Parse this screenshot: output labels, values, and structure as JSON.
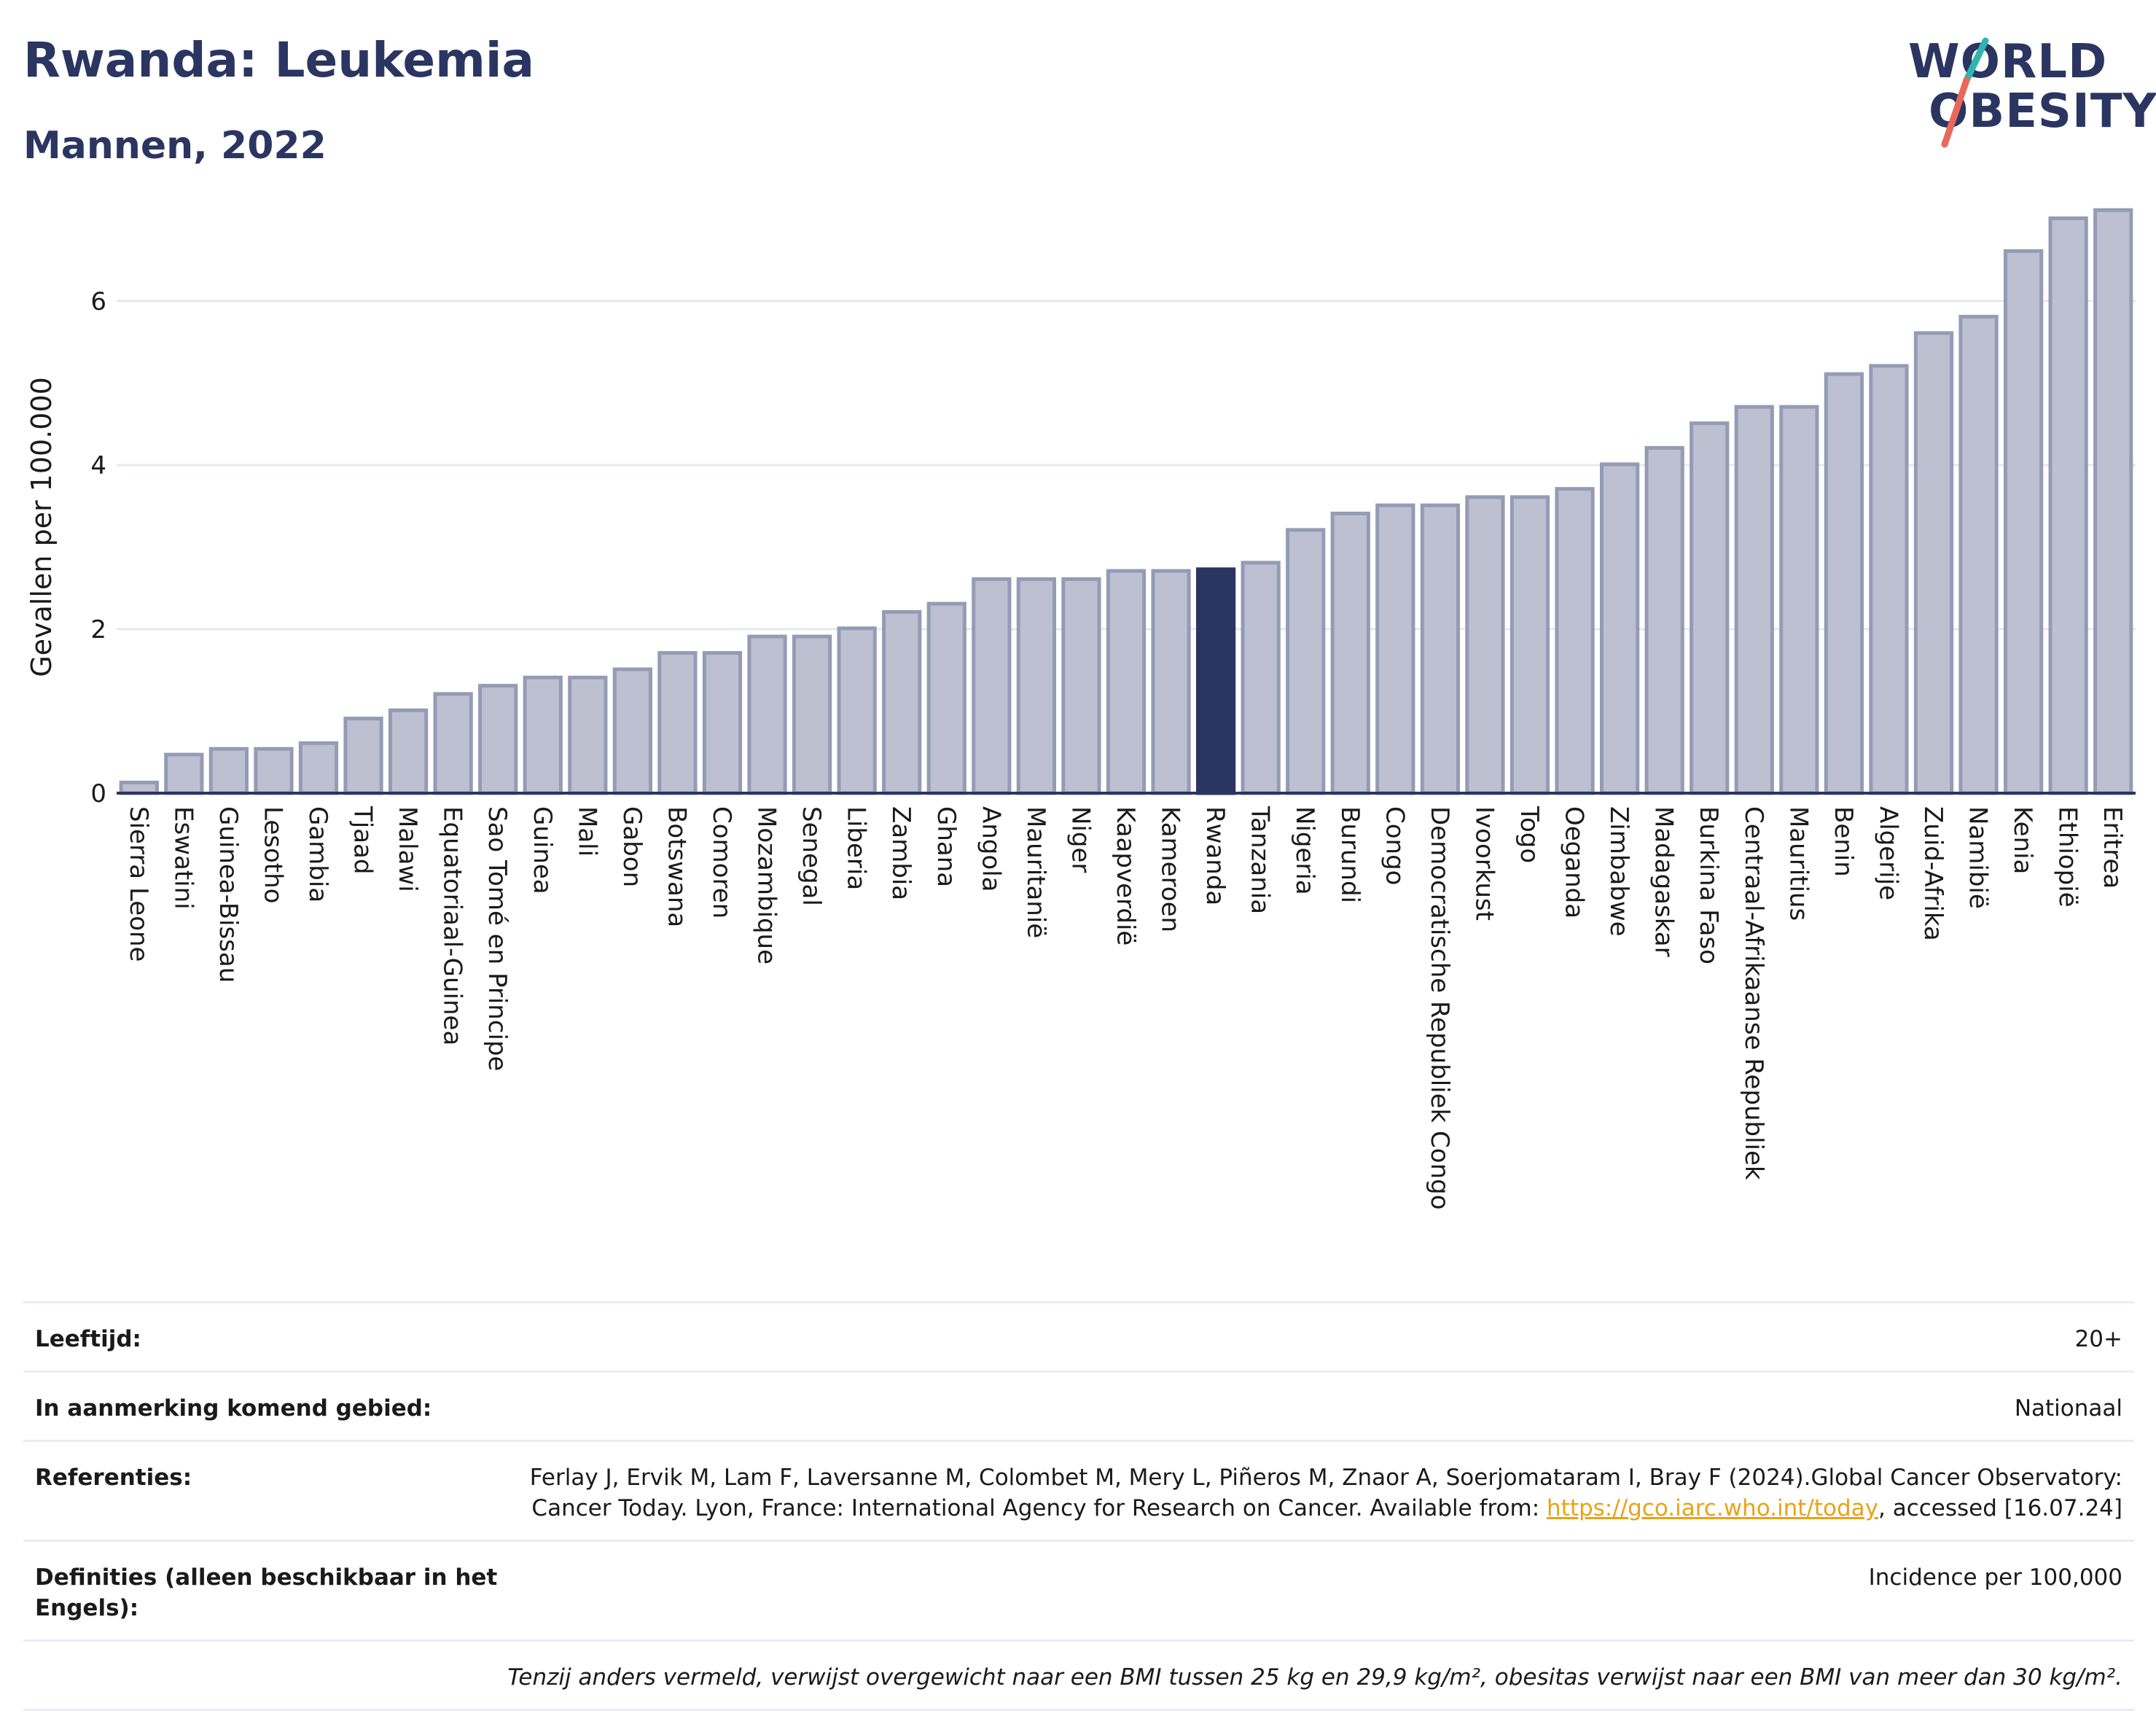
{
  "title": "Rwanda: Leukemia",
  "subtitle": "Mannen, 2022",
  "logo": {
    "line1": "WORLD",
    "line2": "OBESITY"
  },
  "colors": {
    "bar": "#bcc0d0",
    "bar_stroke": "#959bb5",
    "highlight": "#2b3561",
    "grid": "#e6e8ef",
    "axis": "#2b3561",
    "logo_slash_top": "#2fb5b0",
    "logo_slash_bottom": "#e8685a"
  },
  "chart_data": {
    "type": "bar",
    "ylabel": "Gevallen per 100.000",
    "ylim": [
      0,
      7.2
    ],
    "yticks": [
      0,
      2,
      4,
      6
    ],
    "grid": true,
    "highlight": "Rwanda",
    "categories": [
      "Sierra Leone",
      "Eswatini",
      "Guinea-Bissau",
      "Lesotho",
      "Gambia",
      "Tjaad",
      "Malawi",
      "Equatoriaal-Guinea",
      "Sao Tomé en Principe",
      "Guinea",
      "Mali",
      "Gabon",
      "Botswana",
      "Comoren",
      "Mozambique",
      "Senegal",
      "Liberia",
      "Zambia",
      "Ghana",
      "Angola",
      "Mauritanië",
      "Niger",
      "Kaapverdië",
      "Kameroen",
      "Rwanda",
      "Tanzania",
      "Nigeria",
      "Burundi",
      "Congo",
      "Democratische Republiek Congo",
      "Ivoorkust",
      "Togo",
      "Oeganda",
      "Zimbabwe",
      "Madagaskar",
      "Burkina Faso",
      "Centraal-Afrikaanse Republiek",
      "Mauritius",
      "Benin",
      "Algerije",
      "Zuid-Afrika",
      "Namibië",
      "Kenia",
      "Ethiopië",
      "Eritrea"
    ],
    "values": [
      0.13,
      0.47,
      0.54,
      0.54,
      0.61,
      0.91,
      1.01,
      1.21,
      1.31,
      1.41,
      1.41,
      1.51,
      1.71,
      1.71,
      1.91,
      1.91,
      2.01,
      2.21,
      2.31,
      2.61,
      2.61,
      2.61,
      2.71,
      2.71,
      2.73,
      2.81,
      3.21,
      3.41,
      3.51,
      3.51,
      3.61,
      3.61,
      3.71,
      4.01,
      4.21,
      4.51,
      4.71,
      4.71,
      5.11,
      5.21,
      5.61,
      5.81,
      6.61,
      7.01,
      7.11
    ]
  },
  "info": {
    "age_label": "Leeftijd:",
    "age_value": "20+",
    "area_label": "In aanmerking komend gebied:",
    "area_value": "Nationaal",
    "ref_label": "Referenties:",
    "ref_text_1": "Ferlay J, Ervik M, Lam F, Laversanne M, Colombet M, Mery L, Piñeros M, Znaor A, Soerjomataram I, Bray F (2024).Global Cancer Observatory: Cancer Today. Lyon, France: International Agency for Research on Cancer. Available from: ",
    "ref_link": "https://gco.iarc.who.int/today",
    "ref_text_2": ", accessed [16.07.24]",
    "def_label": "Definities (alleen beschikbaar in het Engels):",
    "def_value": "Incidence per 100,000",
    "note": "Tenzij anders vermeld, verwijst overgewicht naar een BMI tussen 25 kg en 29,9 kg/m², obesitas verwijst naar een BMI van meer dan 30 kg/m²."
  }
}
